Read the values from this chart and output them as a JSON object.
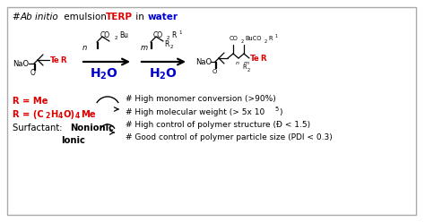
{
  "bg": "#ffffff",
  "border": "#aaaaaa",
  "red": "#dd0000",
  "blue": "#0000cc",
  "black": "#000000",
  "bullet1": "# High monomer conversion (>90%)",
  "bullet2": "# High molecular weight (> 5x 10",
  "bullet2_sup": "5",
  "bullet2_end": ")",
  "bullet3": "# High control of polymer structure (Đ < 1.5)",
  "bullet4": "# Good control of polymer particle size (PDI < 0.3)",
  "red1": "R = Me",
  "surf": "Surfactant: ",
  "surf_bold": "Nonionic",
  "ionic": "Ionic"
}
